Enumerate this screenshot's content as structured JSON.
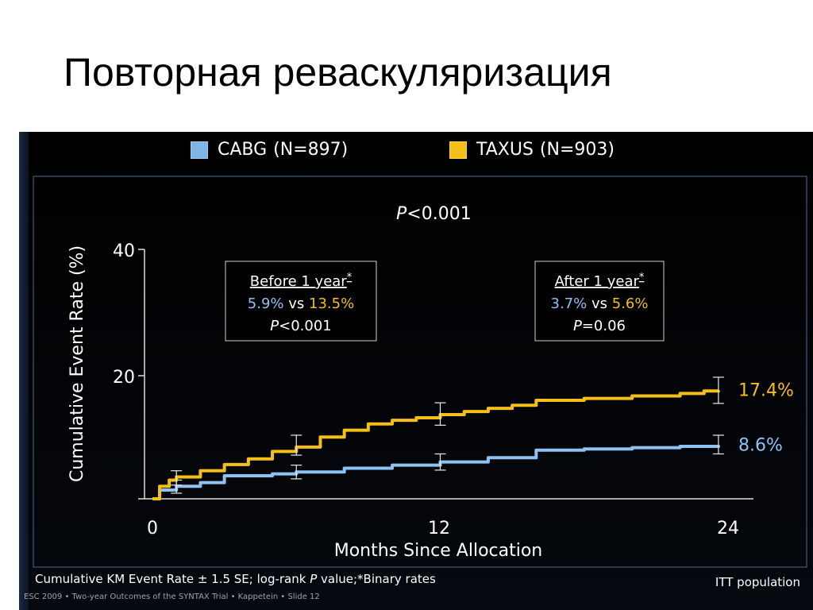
{
  "slide": {
    "title": "Повторная реваскуляризация"
  },
  "legend": {
    "items": [
      {
        "label": "CABG",
        "n": "(N=897)",
        "color": "#7fb4e6"
      },
      {
        "label": "TAXUS",
        "n": "(N=903)",
        "color": "#f5bf1a"
      }
    ]
  },
  "chart_data": {
    "type": "line",
    "title": "",
    "p_value_overall": "<0.001",
    "xlabel": "Months Since Allocation",
    "ylabel": "Cumulative Event Rate (%)",
    "xlim": [
      0,
      24
    ],
    "ylim": [
      0,
      40
    ],
    "x_ticks": [
      "0",
      "12",
      "24"
    ],
    "y_ticks": [
      "20",
      "40"
    ],
    "series": [
      {
        "name": "CABG",
        "color": "#8ec2f2",
        "x": [
          0,
          0.3,
          1,
          2,
          3,
          5,
          6,
          8,
          10,
          12,
          14,
          16,
          18,
          20,
          22,
          23.6
        ],
        "y": [
          0,
          1.4,
          2,
          2.6,
          3.7,
          4.0,
          4.3,
          4.9,
          5.4,
          5.9,
          6.6,
          7.8,
          8.0,
          8.2,
          8.4,
          8.6
        ],
        "end_label": "8.6%",
        "error_bars": [
          {
            "x": 1,
            "low": 0.9,
            "high": 3.0
          },
          {
            "x": 6,
            "low": 3.2,
            "high": 5.4
          },
          {
            "x": 12,
            "low": 4.6,
            "high": 7.2
          },
          {
            "x": 23.6,
            "low": 7.2,
            "high": 10.2
          }
        ]
      },
      {
        "name": "TAXUS",
        "color": "#f5bf1a",
        "x": [
          0,
          0.3,
          0.7,
          1,
          2,
          3,
          4,
          5,
          6,
          7,
          8,
          9,
          10,
          11,
          12,
          13,
          14,
          15,
          16,
          18,
          20,
          22,
          23,
          23.6
        ],
        "y": [
          0,
          2.0,
          3.0,
          3.5,
          4.5,
          5.5,
          6.4,
          7.6,
          8.3,
          9.9,
          11.0,
          12.0,
          12.6,
          13.0,
          13.5,
          14.0,
          14.5,
          15.0,
          15.8,
          16.1,
          16.5,
          16.9,
          17.3,
          17.4
        ],
        "end_label": "17.4%",
        "error_bars": [
          {
            "x": 1,
            "low": 2.2,
            "high": 4.5
          },
          {
            "x": 6,
            "low": 7.0,
            "high": 10.2
          },
          {
            "x": 12,
            "low": 11.8,
            "high": 15.4
          },
          {
            "x": 23.6,
            "low": 15.3,
            "high": 19.5
          }
        ]
      }
    ],
    "annotations": [
      {
        "heading": "Before 1 year",
        "star": "*",
        "cabg_value": "5.9%",
        "vs": "vs",
        "taxus_value": "13.5%",
        "p_text": "<0.001"
      },
      {
        "heading": "After 1 year",
        "star": "*",
        "cabg_value": "3.7%",
        "vs": "vs",
        "taxus_value": "5.6%",
        "p_text": "=0.06"
      }
    ]
  },
  "footer": {
    "note_before": "Cumulative KM Event Rate ± 1.5 SE; log-rank ",
    "note_p": "P",
    "note_after": " value;*Binary rates",
    "population": "ITT population",
    "citation": "ESC 2009 • Two-year Outcomes of the SYNTAX Trial • Kappetein • Slide 12"
  }
}
